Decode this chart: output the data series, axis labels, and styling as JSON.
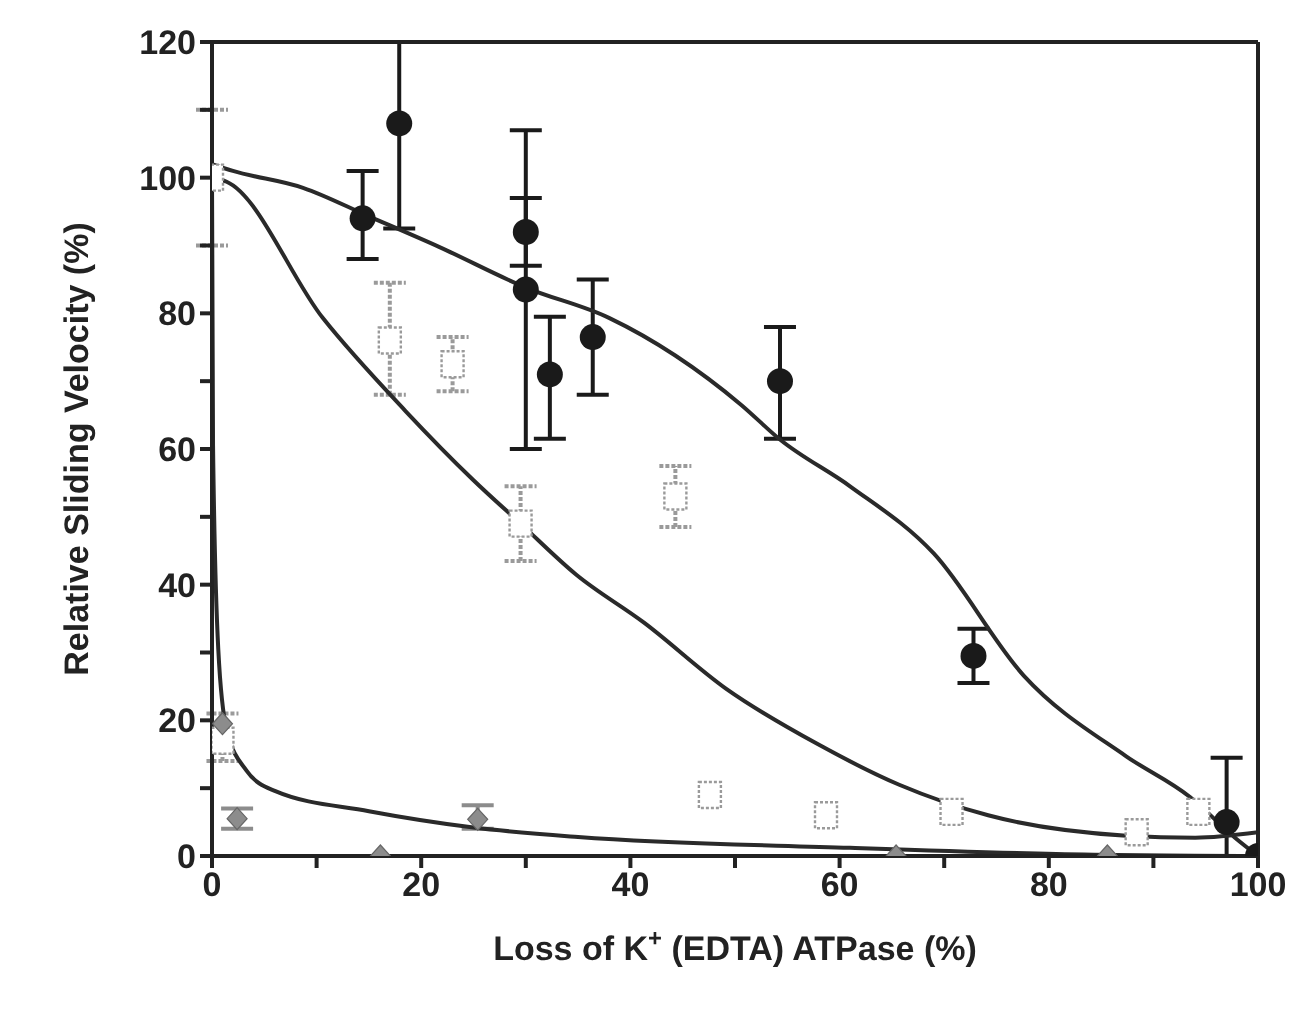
{
  "chart_data": {
    "type": "scatter",
    "xlabel": "Loss of K$^{+}$ (EDTA) ATPase (%)",
    "ylabel": "Relative Sliding  Velocity (%)",
    "xlim": [
      0,
      100
    ],
    "ylim": [
      0,
      120
    ],
    "xticks": [
      0,
      {
        "value": 10,
        "label": null
      },
      20,
      {
        "value": 30,
        "label": null
      },
      40,
      {
        "value": 50,
        "label": null
      },
      60,
      {
        "value": 70,
        "label": null
      },
      80,
      {
        "value": 90,
        "label": null
      },
      100
    ],
    "yticks": [
      0,
      {
        "value": 10,
        "label": null
      },
      20,
      {
        "value": 30,
        "label": null
      },
      40,
      {
        "value": 50,
        "label": null
      },
      60,
      {
        "value": 70,
        "label": null
      },
      80,
      {
        "value": 90,
        "label": null
      },
      100,
      {
        "value": 110,
        "label": null
      },
      120
    ],
    "series": [
      {
        "marker": "circle",
        "color": "#1a1a1a",
        "x": [
          14.4,
          17.9,
          30,
          30,
          32.3,
          36.4,
          54.3,
          72.8,
          97,
          100
        ],
        "values": [
          94,
          108,
          92,
          83.5,
          71,
          76.5,
          70,
          29.5,
          5,
          0
        ],
        "errors": [
          [
            88,
            101
          ],
          [
            92.5,
            120
          ],
          [
            87,
            107
          ],
          [
            60,
            97
          ],
          [
            61.5,
            79.5
          ],
          [
            68,
            85
          ],
          [
            61.5,
            78
          ],
          [
            25.5,
            33.5
          ],
          [
            0,
            14.5
          ],
          null
        ]
      },
      {
        "marker": "square",
        "color": "#9a9a9a",
        "x": [
          0,
          1,
          17,
          23,
          29.5,
          44.3,
          47.6,
          58.7,
          70.7,
          88.4,
          94.3
        ],
        "values": [
          100,
          17,
          76,
          72.5,
          49,
          53,
          9,
          6,
          6.5,
          3.5,
          6.5
        ],
        "errors": [
          [
            90,
            110
          ],
          [
            14,
            21
          ],
          [
            68,
            84.5
          ],
          [
            68.5,
            76.5
          ],
          [
            43.5,
            54.5
          ],
          [
            48.5,
            57.5
          ],
          null,
          null,
          null,
          null,
          null
        ]
      },
      {
        "marker": "diamond",
        "color": "#8c8c8c",
        "x": [
          1,
          2.4,
          16.1,
          25.4,
          65.4,
          85.6
        ],
        "values": [
          19.5,
          5.5,
          0,
          5.4,
          0,
          0
        ],
        "errors": [
          null,
          [
            4,
            7
          ],
          null,
          [
            4,
            7.5
          ],
          null,
          null
        ]
      },
      {
        "type": "line",
        "marker": "none",
        "color": "#2a2a2a",
        "x": [
          0,
          2,
          8.7,
          15,
          21.7,
          30,
          38,
          50.6,
          54.3,
          61,
          69,
          77.6,
          87.4,
          93.5,
          97.8,
          100
        ],
        "values": [
          102,
          101,
          98.5,
          94.3,
          89.8,
          83.8,
          79.3,
          66.5,
          61.4,
          54.5,
          44.6,
          26.6,
          14.7,
          8.7,
          2.7,
          0
        ]
      },
      {
        "type": "line",
        "marker": "none",
        "color": "#2a2a2a",
        "x": [
          0,
          1.4,
          10.6,
          18.5,
          25,
          29.5,
          34.8,
          41.3,
          49.2,
          57.9,
          65.7,
          74.2,
          87.4,
          94,
          100
        ],
        "values": [
          100,
          99.4,
          79.3,
          65.6,
          55.4,
          49,
          41.5,
          34.4,
          24.6,
          16.5,
          10.5,
          6,
          3,
          2.7,
          3.5
        ]
      },
      {
        "type": "line",
        "marker": "none",
        "color": "#2a2a2a",
        "x": [
          0,
          0.1,
          0.6,
          1.4,
          3.3,
          6,
          15,
          25,
          35,
          61,
          80.7,
          100
        ],
        "values": [
          100,
          60.5,
          30.5,
          18.6,
          12.6,
          9.6,
          6.6,
          4.2,
          2.8,
          1.2,
          0.3,
          0
        ]
      }
    ]
  }
}
